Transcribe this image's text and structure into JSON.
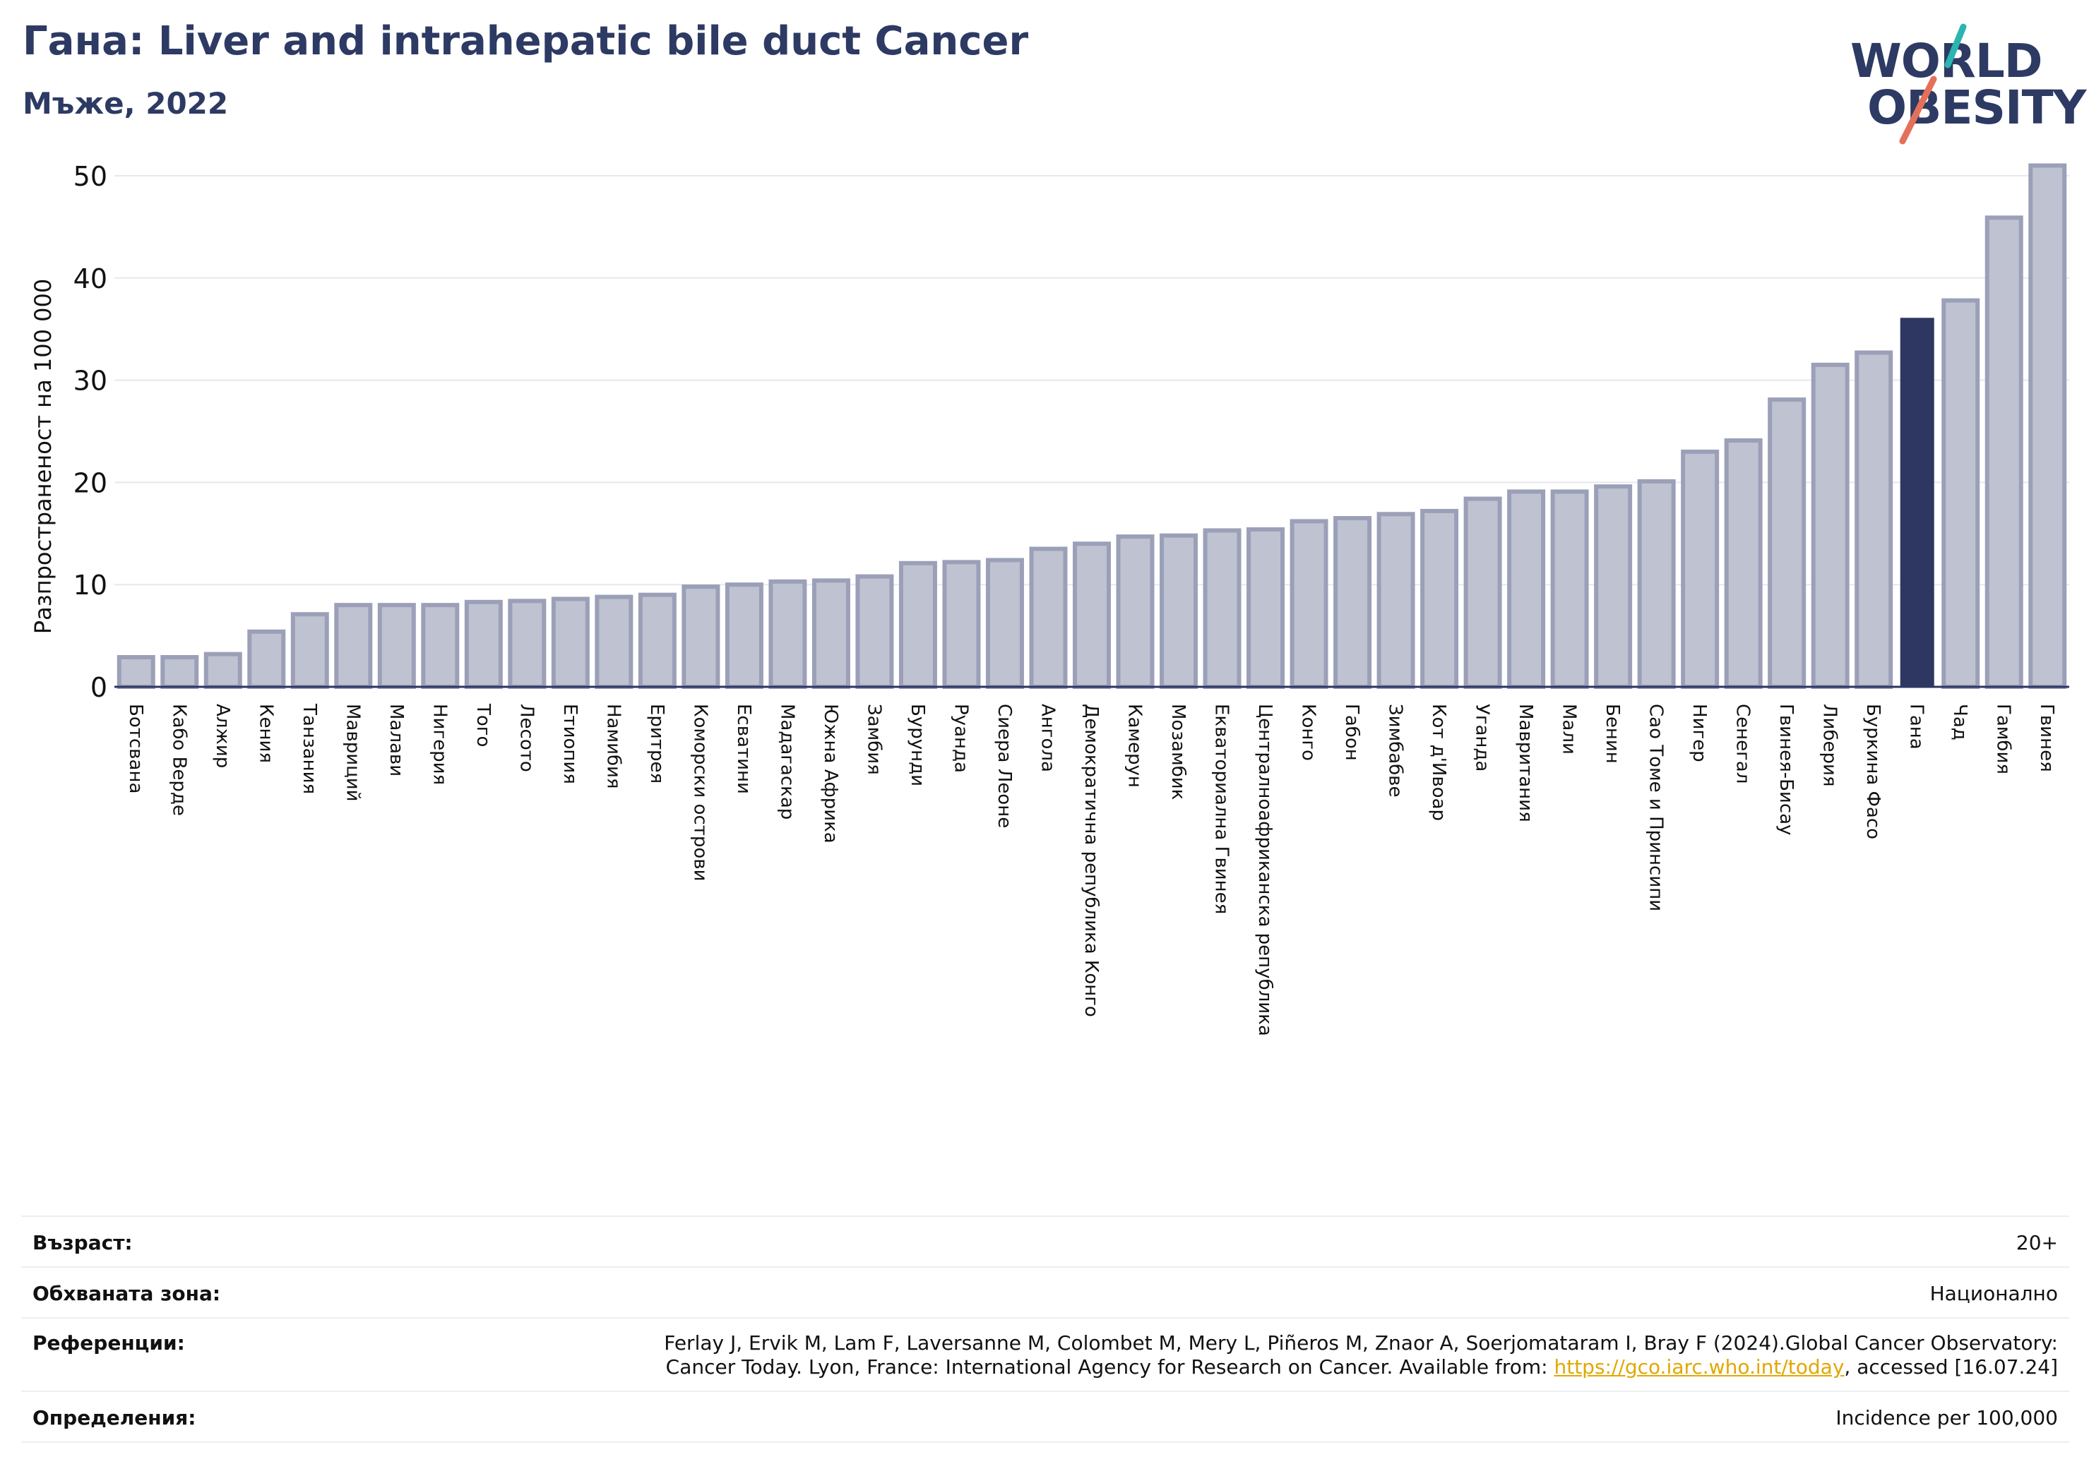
{
  "header": {
    "title": "Гана: Liver and intrahepatic bile duct Cancer",
    "subtitle": "Мъже, 2022"
  },
  "logo": {
    "line1": "WORLD",
    "line2": "OBESITY"
  },
  "colors": {
    "highlight": "#2d3761",
    "bar_fill": "#bfc2d0",
    "bar_stroke": "#9ba0b8",
    "title": "#2d3a63",
    "logo_teal": "#2bb5b0",
    "logo_red": "#e4705a",
    "link": "#e0a800"
  },
  "chart_data": {
    "type": "bar",
    "ylabel": "Разпространеност  на 100 000",
    "ylim": [
      0,
      52
    ],
    "yticks": [
      0,
      10,
      20,
      30,
      40,
      50
    ],
    "grid": true,
    "highlight": "Гана",
    "categories": [
      "Ботсвана",
      "Кабо Верде",
      "Алжир",
      "Кения",
      "Танзания",
      "Мавриций",
      "Малави",
      "Нигерия",
      "Того",
      "Лесото",
      "Етиопия",
      "Намибия",
      "Еритрея",
      "Коморски острови",
      "Есватини",
      "Мадагаскар",
      "Южна Африка",
      "Замбия",
      "Бурунди",
      "Руанда",
      "Сиера Леоне",
      "Ангола",
      "Демократична република Конго",
      "Камерун",
      "Мозамбик",
      "Екваториална Гвинея",
      "Централноафриканска република",
      "Конго",
      "Габон",
      "Зимбабве",
      "Кот д'Ивоар",
      "Уганда",
      "Мавритания",
      "Мали",
      "Бенин",
      "Сао Томе и Принсипи",
      "Нигер",
      "Сенегал",
      "Гвинея-Бисау",
      "Либерия",
      "Буркина Фасо",
      "Гана",
      "Чад",
      "Гамбия",
      "Гвинея"
    ],
    "values": [
      2.9,
      2.9,
      3.2,
      5.4,
      7.1,
      8.0,
      8.0,
      8.0,
      8.3,
      8.4,
      8.6,
      8.8,
      9.0,
      9.8,
      10.0,
      10.3,
      10.4,
      10.8,
      12.1,
      12.2,
      12.4,
      13.5,
      14.0,
      14.7,
      14.8,
      15.3,
      15.4,
      16.2,
      16.5,
      16.9,
      17.2,
      18.4,
      19.1,
      19.1,
      19.6,
      20.1,
      23.0,
      24.1,
      28.1,
      31.5,
      32.7,
      36.1,
      37.8,
      45.9,
      51.0
    ]
  },
  "meta": {
    "age_label": "Възраст:",
    "age_value": "20+",
    "area_label": "Обхваната зона:",
    "area_value": "Национално",
    "refs_label": "Референции:",
    "refs_line1": "Ferlay J, Ervik M, Lam F, Laversanne M, Colombet M, Mery L, Piñeros M, Znaor A, Soerjomataram I, Bray F (2024).Global Cancer Observatory:",
    "refs_line2_pre": "Cancer Today. Lyon, France: International Agency for Research on Cancer. Available from: ",
    "refs_link": "https://gco.iarc.who.int/today",
    "refs_line2_post": ", accessed [16.07.24]",
    "defs_label": "Определения:",
    "defs_value": "Incidence per 100,000"
  }
}
